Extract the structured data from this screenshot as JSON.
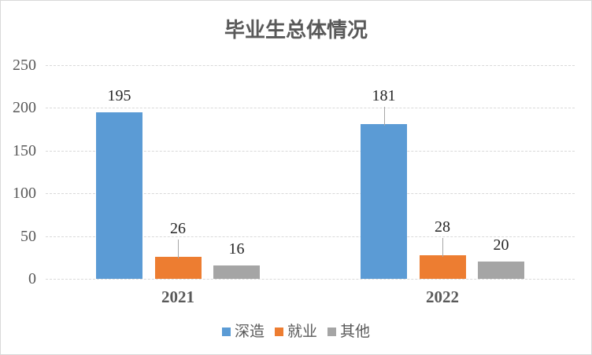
{
  "chart_data": {
    "type": "bar",
    "title": "毕业生总体情况",
    "categories": [
      "2021",
      "2022"
    ],
    "series": [
      {
        "name": "深造",
        "color": "#5B9BD5",
        "values": [
          195,
          181
        ],
        "label_leader_lines": [
          false,
          true
        ]
      },
      {
        "name": "就业",
        "color": "#ED7D31",
        "values": [
          26,
          28
        ],
        "label_leader_lines": [
          true,
          true
        ]
      },
      {
        "name": "其他",
        "color": "#A5A5A5",
        "values": [
          16,
          20
        ],
        "label_leader_lines": [
          false,
          false
        ]
      }
    ],
    "data_labels_shown": true,
    "ylim": [
      0,
      250
    ],
    "yticks": [
      0,
      50,
      100,
      150,
      200,
      250
    ],
    "grid": true,
    "legend_position": "bottom"
  },
  "theme": {
    "title_color": "#595959",
    "axis_text_color": "#595959",
    "data_label_color": "#262626",
    "gridline_color": "#D9D9D9",
    "leader_line_color": "#A6A6A6",
    "frame_border_color": "#D9D9D9",
    "background": "#FFFFFF"
  }
}
